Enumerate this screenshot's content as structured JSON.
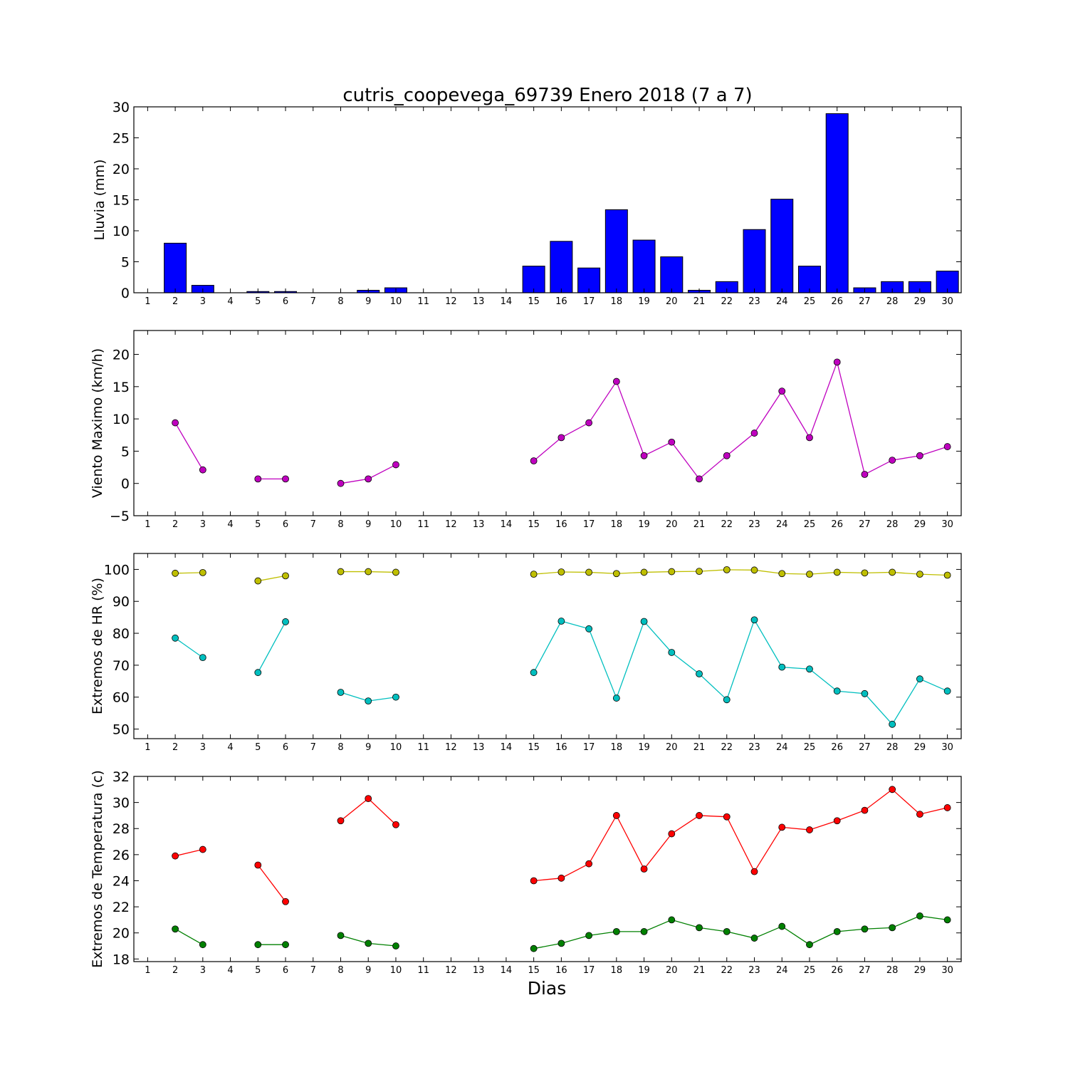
{
  "chart_data": [
    {
      "type": "bar",
      "title": "cutris_coopevega_69739 Enero 2018  (7 a 7)",
      "ylabel": "Lluvia (mm)",
      "xlabel": "",
      "ylim": [
        0,
        30
      ],
      "yticks": [
        "0",
        "5",
        "10",
        "15",
        "20",
        "25",
        "30"
      ],
      "categories": [
        "1",
        "2",
        "3",
        "4",
        "5",
        "6",
        "7",
        "8",
        "9",
        "10",
        "11",
        "12",
        "13",
        "14",
        "15",
        "16",
        "17",
        "18",
        "19",
        "20",
        "21",
        "22",
        "23",
        "24",
        "25",
        "26",
        "27",
        "28",
        "29",
        "30"
      ],
      "values": [
        0,
        8.0,
        1.2,
        0,
        0.2,
        0.2,
        0,
        0,
        0.4,
        0.8,
        0,
        0,
        0,
        0,
        4.3,
        8.3,
        4.0,
        13.4,
        8.5,
        5.8,
        0.4,
        1.8,
        10.2,
        15.1,
        4.3,
        28.9,
        0.8,
        1.8,
        1.8,
        3.5
      ],
      "bar_color": "#0000ff"
    },
    {
      "type": "line",
      "ylabel": "Viento Maximo (km/h)",
      "xlabel": "",
      "ylim": [
        -5,
        23.7
      ],
      "yticks": [
        "−5",
        "0",
        "5",
        "10",
        "15",
        "20"
      ],
      "categories": [
        "1",
        "2",
        "3",
        "4",
        "5",
        "6",
        "7",
        "8",
        "9",
        "10",
        "11",
        "12",
        "13",
        "14",
        "15",
        "16",
        "17",
        "18",
        "19",
        "20",
        "21",
        "22",
        "23",
        "24",
        "25",
        "26",
        "27",
        "28",
        "29",
        "30"
      ],
      "series": [
        {
          "color": "#bf00bf",
          "values": [
            null,
            9.4,
            2.1,
            null,
            0.7,
            0.7,
            null,
            0.0,
            0.7,
            2.9,
            null,
            null,
            null,
            null,
            3.5,
            7.1,
            9.4,
            15.8,
            4.3,
            6.4,
            0.7,
            4.3,
            7.8,
            14.3,
            7.1,
            18.8,
            1.4,
            3.6,
            4.3,
            5.7
          ]
        }
      ]
    },
    {
      "type": "line",
      "ylabel": "Extremos de HR (%)",
      "xlabel": "",
      "ylim": [
        47,
        105
      ],
      "yticks": [
        "50",
        "60",
        "70",
        "80",
        "90",
        "100"
      ],
      "categories": [
        "1",
        "2",
        "3",
        "4",
        "5",
        "6",
        "7",
        "8",
        "9",
        "10",
        "11",
        "12",
        "13",
        "14",
        "15",
        "16",
        "17",
        "18",
        "19",
        "20",
        "21",
        "22",
        "23",
        "24",
        "25",
        "26",
        "27",
        "28",
        "29",
        "30"
      ],
      "series": [
        {
          "color": "#bfbf00",
          "values": [
            null,
            98.8,
            99.0,
            null,
            96.4,
            98.0,
            null,
            99.3,
            99.3,
            99.1,
            null,
            null,
            null,
            null,
            98.5,
            99.2,
            99.1,
            98.7,
            99.1,
            99.3,
            99.4,
            99.9,
            99.8,
            98.7,
            98.5,
            99.1,
            98.9,
            99.1,
            98.5,
            98.2
          ]
        },
        {
          "color": "#00bfbf",
          "values": [
            null,
            78.5,
            72.4,
            null,
            67.7,
            83.6,
            null,
            61.5,
            58.8,
            60.0,
            null,
            null,
            null,
            null,
            67.7,
            83.8,
            81.4,
            59.7,
            83.7,
            74.0,
            67.3,
            59.2,
            84.2,
            69.4,
            68.8,
            61.9,
            61.1,
            51.5,
            65.7,
            61.9
          ]
        }
      ]
    },
    {
      "type": "line",
      "ylabel": "Extremos de Temperatura (c)",
      "xlabel": "Dias",
      "ylim": [
        17.8,
        32
      ],
      "yticks": [
        "18",
        "20",
        "22",
        "24",
        "26",
        "28",
        "30",
        "32"
      ],
      "categories": [
        "1",
        "2",
        "3",
        "4",
        "5",
        "6",
        "7",
        "8",
        "9",
        "10",
        "11",
        "12",
        "13",
        "14",
        "15",
        "16",
        "17",
        "18",
        "19",
        "20",
        "21",
        "22",
        "23",
        "24",
        "25",
        "26",
        "27",
        "28",
        "29",
        "30"
      ],
      "series": [
        {
          "color": "#ff0000",
          "values": [
            null,
            25.9,
            26.4,
            null,
            25.2,
            22.4,
            null,
            28.6,
            30.3,
            28.3,
            null,
            null,
            null,
            null,
            24.0,
            24.2,
            25.3,
            29.0,
            24.9,
            27.6,
            29.0,
            28.9,
            24.7,
            28.1,
            27.9,
            28.6,
            29.4,
            31.0,
            29.1,
            29.6
          ]
        },
        {
          "color": "#008000",
          "values": [
            null,
            20.3,
            19.1,
            null,
            19.1,
            19.1,
            null,
            19.8,
            19.2,
            19.0,
            null,
            null,
            null,
            null,
            18.8,
            19.2,
            19.8,
            20.1,
            20.1,
            21.0,
            20.4,
            20.1,
            19.6,
            20.5,
            19.1,
            20.1,
            20.3,
            20.4,
            21.3,
            21.0
          ]
        }
      ]
    }
  ]
}
